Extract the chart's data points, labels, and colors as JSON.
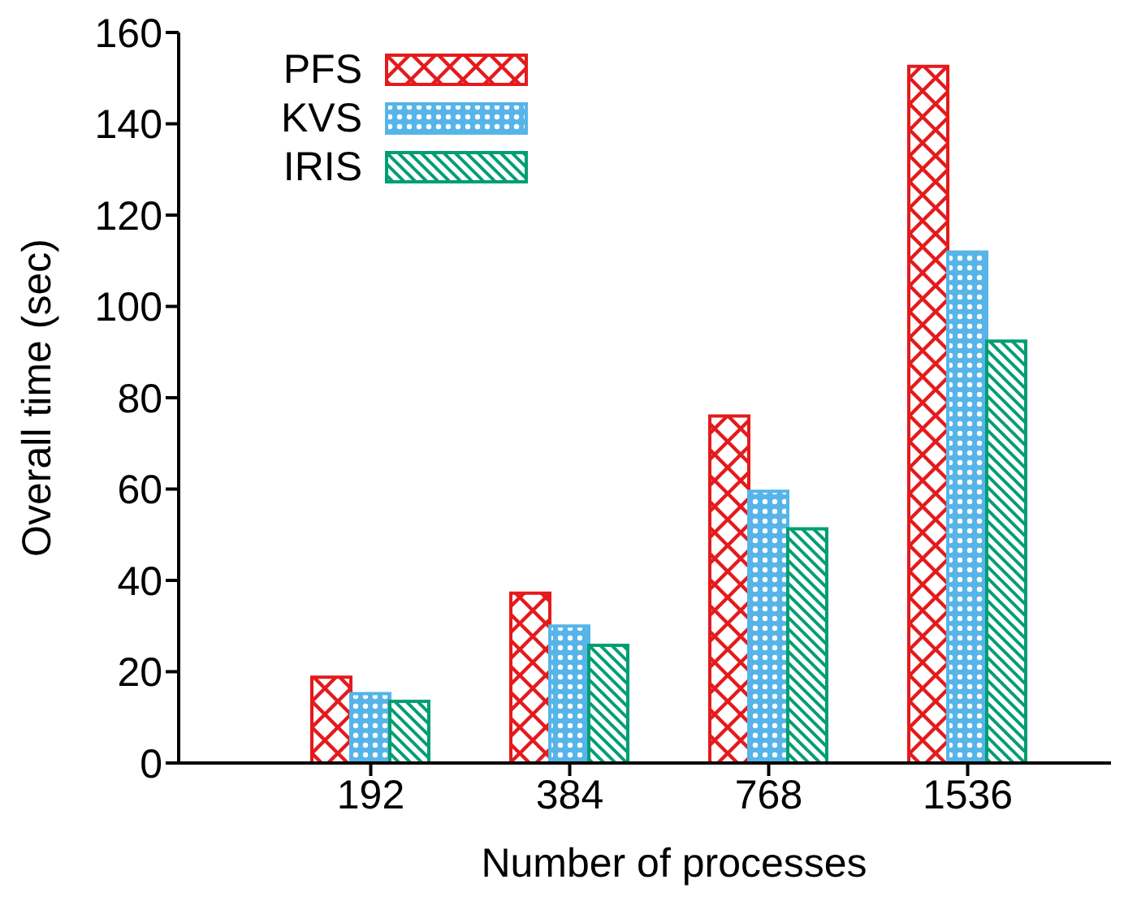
{
  "chart_data": {
    "type": "bar",
    "xlabel": "Number of processes",
    "ylabel": "Overall time (sec)",
    "categories": [
      "192",
      "384",
      "768",
      "1536"
    ],
    "series": [
      {
        "name": "PFS",
        "color": "#e41a1c",
        "values": [
          18.8,
          37.2,
          76,
          152.6
        ]
      },
      {
        "name": "KVS",
        "color": "#56b4e9",
        "values": [
          15.2,
          30,
          59.5,
          111.9
        ]
      },
      {
        "name": "IRIS",
        "color": "#009e73",
        "values": [
          13.5,
          25.8,
          51.3,
          92.4
        ]
      }
    ],
    "ylim": [
      0,
      160
    ],
    "yticks": [
      0,
      20,
      40,
      60,
      80,
      100,
      120,
      140,
      160
    ],
    "grid": false,
    "legend": "top left"
  }
}
